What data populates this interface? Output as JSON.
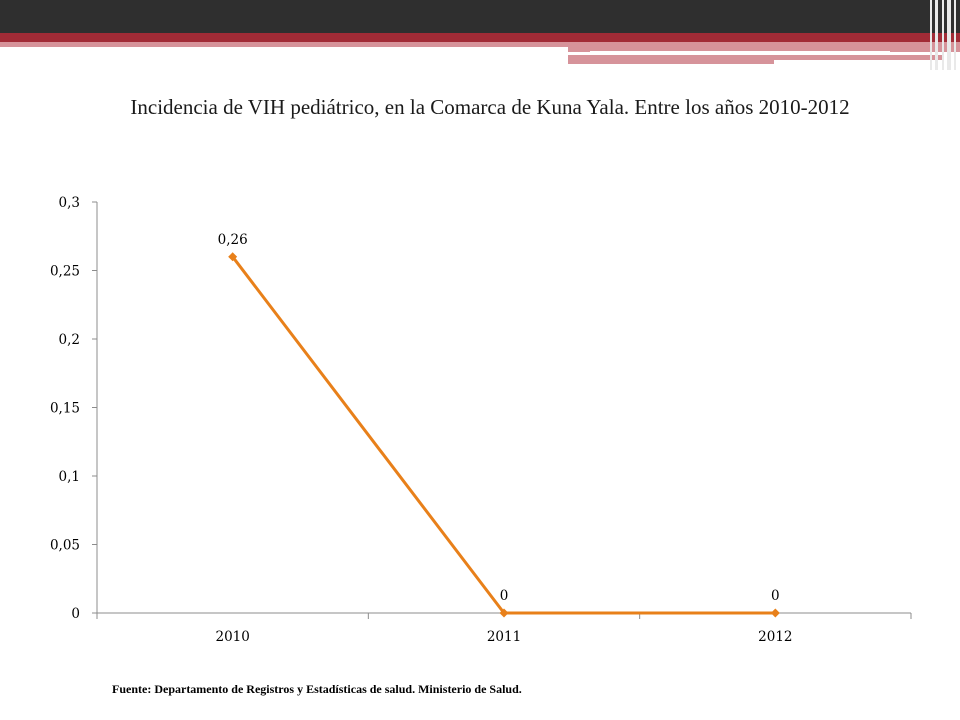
{
  "slide": {
    "title": "Incidencia de VIH pediátrico, en la Comarca de Kuna Yala. Entre los años 2010-2012",
    "source": "Fuente: Departamento de Registros y Estadísticas de salud. Ministerio de Salud."
  },
  "colors": {
    "series": "#e8801a",
    "axis": "#8c8c8c",
    "banner_dark": "#2f2f2f",
    "banner_red": "#a12b36",
    "banner_pink": "#d6939a"
  },
  "chart_data": {
    "type": "line",
    "title": "Incidencia de VIH pediátrico, en la Comarca de Kuna Yala. Entre los años 2010-2012",
    "categories": [
      "2010",
      "2011",
      "2012"
    ],
    "series": [
      {
        "values": [
          0.26,
          0,
          0
        ],
        "data_labels": [
          "0,26",
          "0",
          "0"
        ],
        "marker": "diamond"
      }
    ],
    "y_ticks": [
      0,
      0.05,
      0.1,
      0.15,
      0.2,
      0.25,
      0.3
    ],
    "y_tick_labels": [
      "0",
      "0,05",
      "0,1",
      "0,15",
      "0,2",
      "0,25",
      "0,3"
    ],
    "ylim": [
      0,
      0.3
    ],
    "xlabel": "",
    "ylabel": "",
    "grid": false,
    "legend": "none"
  }
}
